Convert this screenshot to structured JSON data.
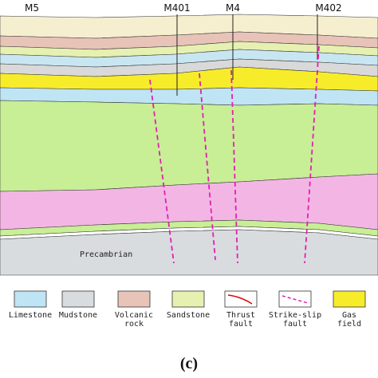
{
  "wells": [
    "M5",
    "M401",
    "M4",
    "M402"
  ],
  "section_label": "Precambrian",
  "legend": [
    {
      "lines": [
        "Limestone"
      ]
    },
    {
      "lines": [
        "Mudstone"
      ]
    },
    {
      "lines": [
        "Volcanic",
        "rock"
      ]
    },
    {
      "lines": [
        "Sandstone"
      ]
    },
    {
      "lines": [
        "Thrust",
        "fault"
      ]
    },
    {
      "lines": [
        "Strike-slip",
        "fault"
      ]
    },
    {
      "lines": [
        "Gas",
        "field"
      ]
    }
  ],
  "caption": "(c)"
}
